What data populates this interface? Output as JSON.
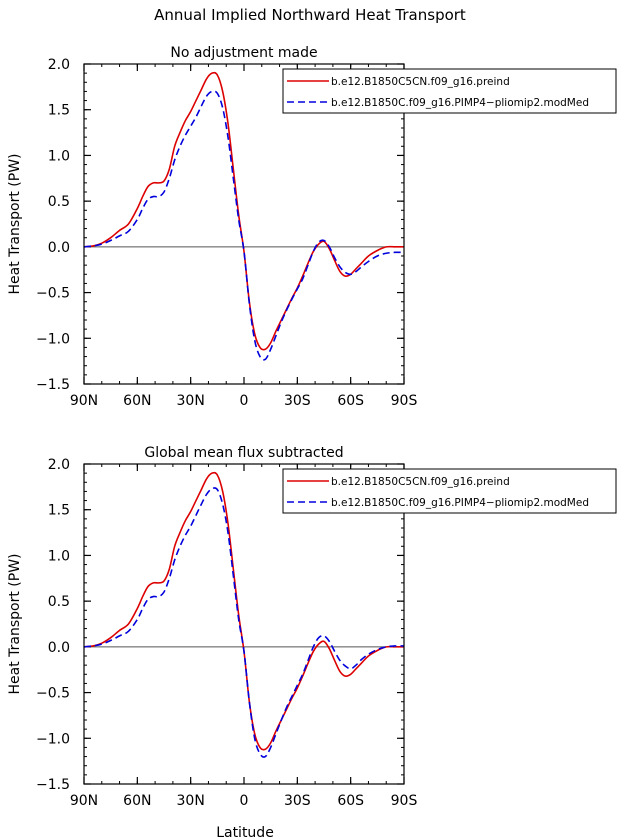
{
  "figure": {
    "title": "Annual Implied Northward Heat Transport",
    "xlabel": "Latitude"
  },
  "colors": {
    "series_1": "#dd0000",
    "series_2": "#0000dd",
    "zero_line": "#555555"
  },
  "chart_data": [
    {
      "type": "line",
      "title": "No adjustment made",
      "xlabel": "",
      "ylabel": "Heat Transport (PW)",
      "xlim": [
        -90,
        90
      ],
      "ylim": [
        -1.5,
        2.0
      ],
      "yticks": [
        -1.5,
        -1.0,
        -0.5,
        0.0,
        0.5,
        1.0,
        1.5,
        2.0
      ],
      "ytick_labels": [
        "−1.5",
        "−1.0",
        "−0.5",
        "0.0",
        "0.5",
        "1.0",
        "1.5",
        "2.0"
      ],
      "xticks": [
        -90,
        -60,
        -30,
        0,
        30,
        60,
        90
      ],
      "xtick_labels": [
        "90N",
        "60N",
        "30N",
        "0",
        "30S",
        "60S",
        "90S"
      ],
      "legend_position": "top-right",
      "series": [
        {
          "name": "b.e12.B1850C5CN.f09_g16.preind",
          "color": "#dd0000",
          "style": "solid",
          "x": [
            -90,
            -85,
            -80,
            -75,
            -70,
            -65,
            -60,
            -57,
            -54,
            -51,
            -48,
            -45,
            -42,
            -39,
            -36,
            -33,
            -30,
            -27,
            -24,
            -21,
            -18,
            -15,
            -12,
            -9,
            -6,
            -3,
            0,
            3,
            6,
            9,
            12,
            15,
            18,
            21,
            24,
            27,
            30,
            33,
            36,
            39,
            42,
            45,
            48,
            51,
            54,
            57,
            60,
            63,
            66,
            70,
            75,
            80,
            85,
            90
          ],
          "y": [
            0.0,
            0.01,
            0.04,
            0.1,
            0.18,
            0.25,
            0.42,
            0.55,
            0.66,
            0.7,
            0.7,
            0.72,
            0.85,
            1.1,
            1.25,
            1.38,
            1.48,
            1.6,
            1.72,
            1.84,
            1.9,
            1.88,
            1.7,
            1.35,
            0.85,
            0.35,
            -0.05,
            -0.6,
            -0.95,
            -1.1,
            -1.12,
            -1.05,
            -0.92,
            -0.8,
            -0.68,
            -0.56,
            -0.45,
            -0.32,
            -0.18,
            -0.05,
            0.03,
            0.06,
            -0.02,
            -0.15,
            -0.27,
            -0.32,
            -0.3,
            -0.24,
            -0.18,
            -0.1,
            -0.04,
            0.0,
            0.0,
            0.0
          ]
        },
        {
          "name": "b.e12.B1850C.f09_g16.PIMP4−pliomip2.modMed",
          "color": "#0000dd",
          "style": "dashed",
          "x": [
            -90,
            -85,
            -80,
            -75,
            -70,
            -65,
            -60,
            -57,
            -54,
            -51,
            -48,
            -45,
            -42,
            -39,
            -36,
            -33,
            -30,
            -27,
            -24,
            -21,
            -18,
            -15,
            -12,
            -9,
            -6,
            -3,
            0,
            3,
            6,
            9,
            12,
            15,
            18,
            21,
            24,
            27,
            30,
            33,
            36,
            39,
            42,
            45,
            48,
            51,
            54,
            57,
            60,
            63,
            66,
            70,
            75,
            80,
            85,
            90
          ],
          "y": [
            0.0,
            0.01,
            0.03,
            0.07,
            0.12,
            0.17,
            0.3,
            0.42,
            0.52,
            0.55,
            0.55,
            0.6,
            0.75,
            0.95,
            1.1,
            1.22,
            1.32,
            1.42,
            1.54,
            1.65,
            1.7,
            1.68,
            1.52,
            1.2,
            0.75,
            0.3,
            -0.05,
            -0.62,
            -1.02,
            -1.2,
            -1.23,
            -1.12,
            -0.97,
            -0.82,
            -0.69,
            -0.57,
            -0.46,
            -0.35,
            -0.2,
            -0.05,
            0.05,
            0.07,
            0.0,
            -0.12,
            -0.22,
            -0.28,
            -0.3,
            -0.27,
            -0.22,
            -0.16,
            -0.1,
            -0.07,
            -0.06,
            -0.06
          ]
        }
      ]
    },
    {
      "type": "line",
      "title": "Global mean flux subtracted",
      "xlabel": "Latitude",
      "ylabel": "Heat Transport (PW)",
      "xlim": [
        -90,
        90
      ],
      "ylim": [
        -1.5,
        2.0
      ],
      "yticks": [
        -1.5,
        -1.0,
        -0.5,
        0.0,
        0.5,
        1.0,
        1.5,
        2.0
      ],
      "ytick_labels": [
        "−1.5",
        "−1.0",
        "−0.5",
        "0.0",
        "0.5",
        "1.0",
        "1.5",
        "2.0"
      ],
      "xticks": [
        -90,
        -60,
        -30,
        0,
        30,
        60,
        90
      ],
      "xtick_labels": [
        "90N",
        "60N",
        "30N",
        "0",
        "30S",
        "60S",
        "90S"
      ],
      "legend_position": "top-right",
      "series": [
        {
          "name": "b.e12.B1850C5CN.f09_g16.preind",
          "color": "#dd0000",
          "style": "solid",
          "x": [
            -90,
            -85,
            -80,
            -75,
            -70,
            -65,
            -60,
            -57,
            -54,
            -51,
            -48,
            -45,
            -42,
            -39,
            -36,
            -33,
            -30,
            -27,
            -24,
            -21,
            -18,
            -15,
            -12,
            -9,
            -6,
            -3,
            0,
            3,
            6,
            9,
            12,
            15,
            18,
            21,
            24,
            27,
            30,
            33,
            36,
            39,
            42,
            45,
            48,
            51,
            54,
            57,
            60,
            63,
            66,
            70,
            75,
            80,
            85,
            90
          ],
          "y": [
            0.0,
            0.01,
            0.04,
            0.1,
            0.18,
            0.25,
            0.42,
            0.55,
            0.66,
            0.7,
            0.7,
            0.72,
            0.85,
            1.1,
            1.25,
            1.38,
            1.48,
            1.6,
            1.72,
            1.84,
            1.9,
            1.88,
            1.7,
            1.35,
            0.85,
            0.35,
            -0.05,
            -0.6,
            -0.95,
            -1.1,
            -1.12,
            -1.05,
            -0.92,
            -0.8,
            -0.68,
            -0.56,
            -0.45,
            -0.32,
            -0.18,
            -0.05,
            0.03,
            0.06,
            -0.02,
            -0.15,
            -0.27,
            -0.32,
            -0.3,
            -0.24,
            -0.18,
            -0.1,
            -0.04,
            0.0,
            0.0,
            0.0
          ]
        },
        {
          "name": "b.e12.B1850C.f09_g16.PIMP4−pliomip2.modMed",
          "color": "#0000dd",
          "style": "dashed",
          "x": [
            -90,
            -85,
            -80,
            -75,
            -70,
            -65,
            -60,
            -57,
            -54,
            -51,
            -48,
            -45,
            -42,
            -39,
            -36,
            -33,
            -30,
            -27,
            -24,
            -21,
            -18,
            -15,
            -12,
            -9,
            -6,
            -3,
            0,
            3,
            6,
            9,
            12,
            15,
            18,
            21,
            24,
            27,
            30,
            33,
            36,
            39,
            42,
            45,
            48,
            51,
            54,
            57,
            60,
            63,
            66,
            70,
            75,
            80,
            85,
            90
          ],
          "y": [
            0.0,
            0.01,
            0.03,
            0.07,
            0.12,
            0.17,
            0.3,
            0.42,
            0.52,
            0.55,
            0.55,
            0.6,
            0.75,
            0.95,
            1.1,
            1.22,
            1.32,
            1.44,
            1.56,
            1.67,
            1.73,
            1.72,
            1.56,
            1.25,
            0.78,
            0.3,
            -0.05,
            -0.6,
            -1.0,
            -1.17,
            -1.2,
            -1.1,
            -0.95,
            -0.8,
            -0.66,
            -0.54,
            -0.42,
            -0.3,
            -0.15,
            0.0,
            0.1,
            0.12,
            0.06,
            -0.05,
            -0.15,
            -0.21,
            -0.24,
            -0.2,
            -0.14,
            -0.08,
            -0.03,
            0.0,
            0.01,
            0.01
          ]
        }
      ]
    }
  ]
}
